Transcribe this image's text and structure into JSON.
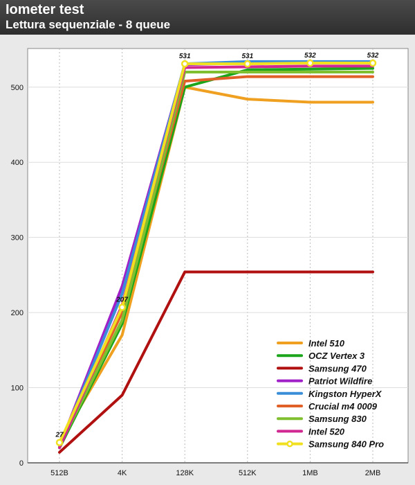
{
  "chart_data": {
    "type": "line",
    "title": "Iometer test",
    "subtitle": "Lettura sequenziale - 8 queue",
    "categories": [
      "512B",
      "4K",
      "128K",
      "512K",
      "1MB",
      "2MB"
    ],
    "ylim": [
      0,
      540
    ],
    "yticks": [
      0,
      100,
      200,
      300,
      400,
      500
    ],
    "grid": true,
    "legend_position": "bottom-right",
    "series": [
      {
        "name": "Intel 510",
        "color": "#f0a020",
        "values": [
          27,
          170,
          500,
          484,
          480,
          480
        ]
      },
      {
        "name": "OCZ Vertex 3",
        "color": "#1aa51a",
        "values": [
          20,
          185,
          500,
          523,
          524,
          525
        ]
      },
      {
        "name": "Samsung 470",
        "color": "#b01010",
        "values": [
          14,
          90,
          254,
          254,
          254,
          254
        ]
      },
      {
        "name": "Patriot Wildfire",
        "color": "#a020c8",
        "values": [
          22,
          235,
          530,
          532,
          532,
          532
        ]
      },
      {
        "name": "Kingston HyperX",
        "color": "#3a8ed8",
        "values": [
          22,
          225,
          531,
          534,
          534,
          534
        ]
      },
      {
        "name": "Crucial m4 0009",
        "color": "#e06028",
        "values": [
          24,
          200,
          508,
          514,
          514,
          514
        ]
      },
      {
        "name": "Samsung 830",
        "color": "#80c030",
        "values": [
          22,
          190,
          520,
          520,
          520,
          520
        ]
      },
      {
        "name": "Intel 520",
        "color": "#d02890",
        "values": [
          20,
          210,
          526,
          527,
          528,
          528
        ]
      },
      {
        "name": "Samsung 840 Pro",
        "color": "#f0e020",
        "values": [
          27,
          207,
          531,
          531,
          532,
          532
        ],
        "labels": [
          "27",
          "207",
          "531",
          "531",
          "532",
          "532"
        ]
      }
    ]
  }
}
